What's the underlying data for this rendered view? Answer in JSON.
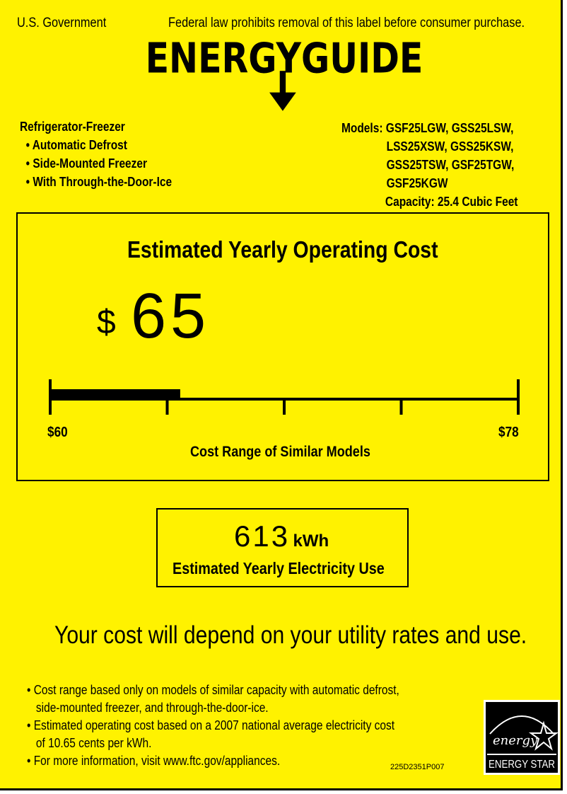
{
  "header": {
    "left": "U.S. Government",
    "right": "Federal law prohibits removal of this label before consumer purchase.",
    "title": "ENERGYGUIDE"
  },
  "product": {
    "type": "Refrigerator-Freezer",
    "features": [
      "Automatic Defrost",
      "Side-Mounted Freezer",
      "With Through-the-Door-Ice"
    ]
  },
  "models": {
    "label": "Models:",
    "lines": [
      "GSF25LGW, GSS25LSW,",
      "LSS25XSW, GSS25KSW,",
      "GSS25TSW, GSF25TGW,",
      "GSF25KGW"
    ],
    "capacity": "Capacity: 25.4 Cubic Feet"
  },
  "cost": {
    "title": "Estimated Yearly Operating Cost",
    "currency": "$",
    "value": "65",
    "range_min": "$60",
    "range_max": "$78",
    "range_label": "Cost Range of Similar Models",
    "scale": {
      "min": 60,
      "max": 78,
      "value": 65,
      "ticks": 5
    }
  },
  "electricity": {
    "value": "613",
    "unit": "kWh",
    "label": "Estimated Yearly Electricity Use"
  },
  "notice": "Your cost will depend on your utility rates and use.",
  "footnotes": [
    [
      "Cost range based only on models of similar capacity with automatic defrost,",
      "side-mounted freezer, and through-the-door-ice."
    ],
    [
      "Estimated operating cost based on a 2007 national average electricity cost",
      "of 10.65 cents per kWh."
    ],
    [
      "For more information, visit www.ftc.gov/appliances."
    ]
  ],
  "code": "225D2351P007",
  "logo": {
    "script": "energy",
    "text": "ENERGY STAR"
  },
  "colors": {
    "background": "#fff200",
    "ink": "#000000"
  }
}
